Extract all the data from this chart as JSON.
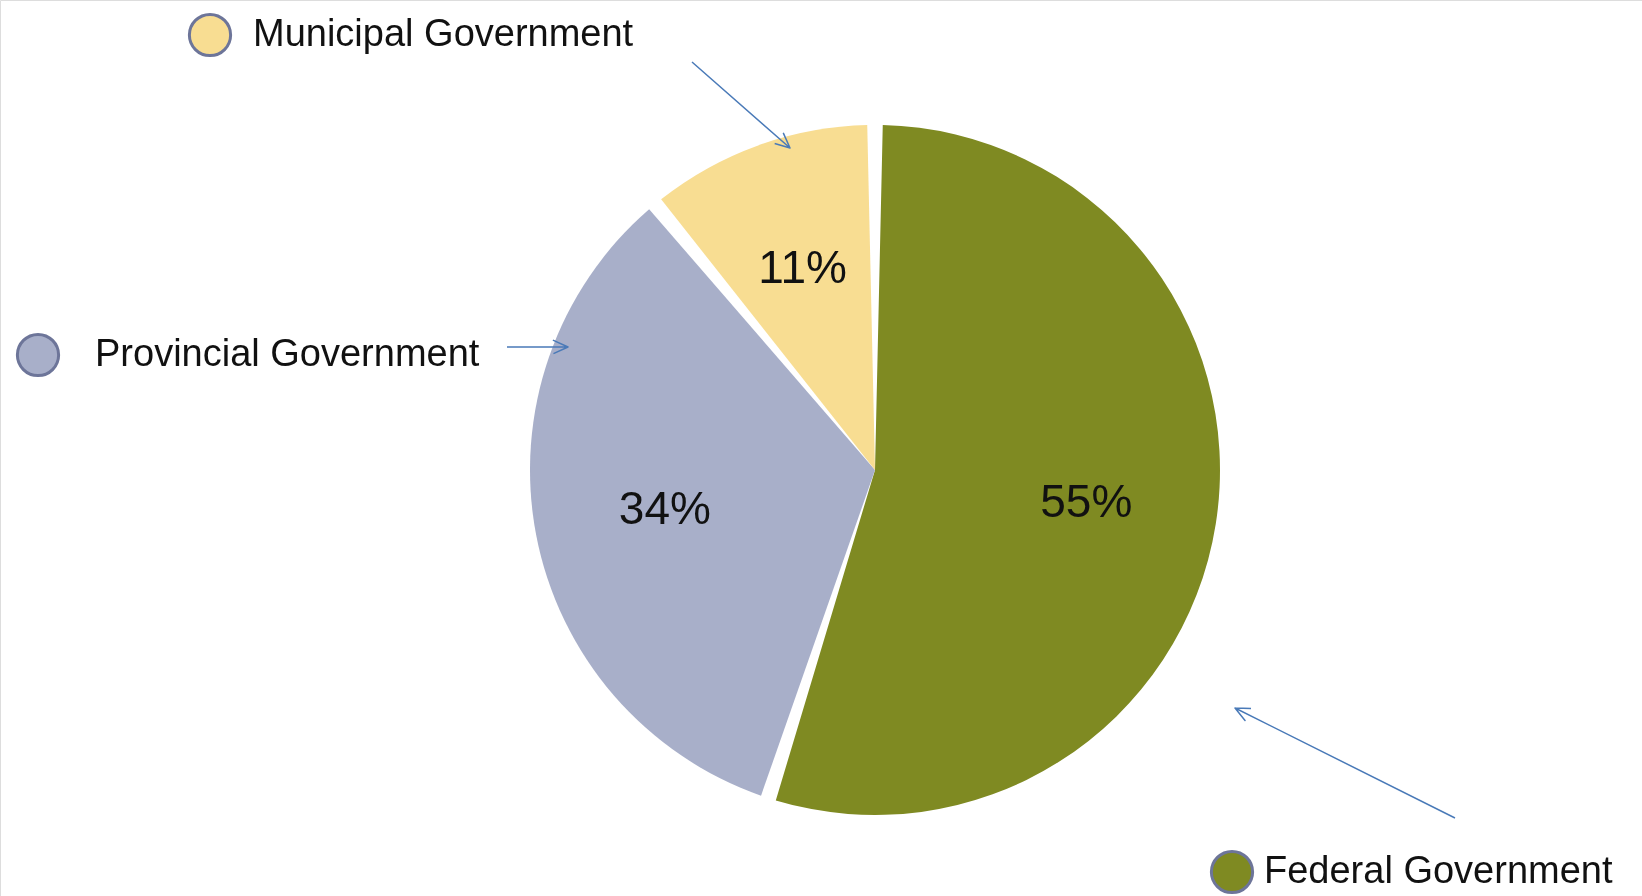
{
  "chart_data": {
    "type": "pie",
    "categories": [
      "Federal Government",
      "Provincial Government",
      "Municipal Government"
    ],
    "values": [
      55,
      34,
      11
    ],
    "colors": [
      "#7f8a22",
      "#a8afc9",
      "#f8dd92"
    ],
    "value_labels": [
      "55%",
      "34%",
      "11%"
    ],
    "legend": "left"
  }
}
